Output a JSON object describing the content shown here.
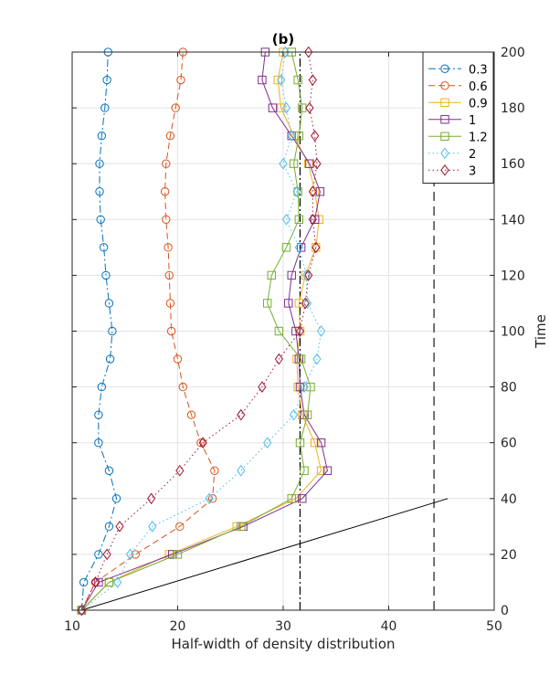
{
  "chart_data": {
    "type": "line",
    "title": "(b)",
    "xlabel": "Half-width of density distribution",
    "ylabel": "Time",
    "xlim": [
      10,
      50
    ],
    "ylim": [
      0,
      200
    ],
    "xticks": [
      "10",
      "20",
      "30",
      "40",
      "50"
    ],
    "yticks": [
      "0",
      "20",
      "40",
      "60",
      "80",
      "100",
      "120",
      "140",
      "160",
      "180",
      "200"
    ],
    "yaxis_side": "right",
    "grid": true,
    "legend_position": "top-right",
    "series": [
      {
        "name": "0.3",
        "color": "#0072BD",
        "marker": "circle",
        "linestyle": "dashdot",
        "x": [
          10.9,
          11.1,
          12.5,
          13.5,
          14.2,
          13.5,
          12.5,
          12.5,
          12.8,
          13.6,
          13.8,
          13.5,
          13.2,
          13.0,
          12.7,
          12.6,
          12.6,
          12.8,
          13.1,
          13.3,
          13.4
        ],
        "y": [
          0,
          10,
          20,
          30,
          40,
          50,
          60,
          70,
          80,
          90,
          100,
          110,
          120,
          130,
          140,
          150,
          160,
          170,
          180,
          190,
          200
        ]
      },
      {
        "name": "0.6",
        "color": "#D95319",
        "marker": "circle",
        "linestyle": "dashed",
        "x": [
          10.9,
          12.2,
          16.0,
          20.2,
          23.3,
          23.5,
          22.2,
          21.3,
          20.5,
          20.0,
          19.4,
          19.3,
          19.2,
          19.1,
          18.9,
          18.8,
          18.9,
          19.3,
          19.8,
          20.3,
          20.5
        ],
        "y": [
          0,
          10,
          20,
          30,
          40,
          50,
          60,
          70,
          80,
          90,
          100,
          110,
          120,
          130,
          140,
          150,
          160,
          170,
          180,
          190,
          200
        ]
      },
      {
        "name": "0.9",
        "color": "#EDB120",
        "marker": "square",
        "linestyle": "solid",
        "x": [
          10.9,
          13.5,
          19.2,
          25.6,
          31.2,
          33.6,
          33.0,
          31.8,
          31.4,
          31.3,
          31.6,
          31.5,
          32.1,
          33.1,
          33.4,
          33.0,
          32.4,
          31.0,
          29.8,
          29.5,
          30.0
        ],
        "y": [
          0,
          10,
          20,
          30,
          40,
          50,
          60,
          70,
          80,
          90,
          100,
          110,
          120,
          130,
          140,
          150,
          160,
          170,
          180,
          190,
          200
        ]
      },
      {
        "name": "1",
        "color": "#7E2F8E",
        "marker": "square",
        "linestyle": "solid",
        "x": [
          10.9,
          12.5,
          19.5,
          26.2,
          31.8,
          34.2,
          33.6,
          32.0,
          31.6,
          31.5,
          31.2,
          30.5,
          30.8,
          31.7,
          33.0,
          33.5,
          32.5,
          30.8,
          29.0,
          28.0,
          28.3
        ],
        "y": [
          0,
          10,
          20,
          30,
          40,
          50,
          60,
          70,
          80,
          90,
          100,
          110,
          120,
          130,
          140,
          150,
          160,
          170,
          180,
          190,
          200
        ]
      },
      {
        "name": "1.2",
        "color": "#77AC30",
        "marker": "square",
        "linestyle": "solid",
        "x": [
          10.9,
          13.5,
          20.0,
          26.0,
          30.8,
          32.0,
          31.6,
          32.3,
          32.6,
          31.7,
          29.6,
          28.5,
          28.9,
          30.3,
          31.5,
          31.4,
          31.0,
          31.5,
          31.8,
          31.4,
          30.8
        ],
        "y": [
          0,
          10,
          20,
          30,
          40,
          50,
          60,
          70,
          80,
          90,
          100,
          110,
          120,
          130,
          140,
          150,
          160,
          170,
          180,
          190,
          200
        ]
      },
      {
        "name": "2",
        "color": "#4DBEEE",
        "marker": "diamond",
        "linestyle": "dotted",
        "x": [
          10.9,
          14.3,
          15.5,
          17.6,
          23.0,
          26.0,
          28.5,
          31.0,
          32.0,
          33.2,
          33.6,
          32.3,
          32.2,
          31.5,
          30.3,
          31.3,
          30.0,
          30.8,
          30.3,
          29.8,
          30.2
        ],
        "y": [
          0,
          10,
          20,
          30,
          40,
          50,
          60,
          70,
          80,
          90,
          100,
          110,
          120,
          130,
          140,
          150,
          160,
          170,
          180,
          190,
          200
        ]
      },
      {
        "name": "3",
        "color": "#A2142F",
        "marker": "diamond",
        "linestyle": "dotted",
        "x": [
          10.9,
          12.2,
          13.3,
          14.5,
          17.5,
          20.2,
          22.4,
          26.0,
          28.0,
          29.6,
          31.6,
          32.1,
          32.4,
          33.1,
          32.8,
          32.8,
          33.2,
          33.0,
          32.5,
          32.8,
          32.4
        ],
        "y": [
          0,
          10,
          20,
          30,
          40,
          50,
          60,
          70,
          80,
          90,
          100,
          110,
          120,
          130,
          140,
          150,
          160,
          170,
          180,
          190,
          200
        ]
      }
    ],
    "reference_lines": [
      {
        "kind": "vertical",
        "style": "dashdot",
        "color": "#000000",
        "x": 31.6
      },
      {
        "kind": "vertical",
        "style": "dashed",
        "color": "#606060",
        "x": 44.3,
        "y_range": [
          0,
          157
        ]
      },
      {
        "kind": "segment",
        "style": "solid",
        "color": "#000000",
        "from": [
          10.9,
          0
        ],
        "to": [
          45.6,
          40
        ]
      }
    ]
  }
}
